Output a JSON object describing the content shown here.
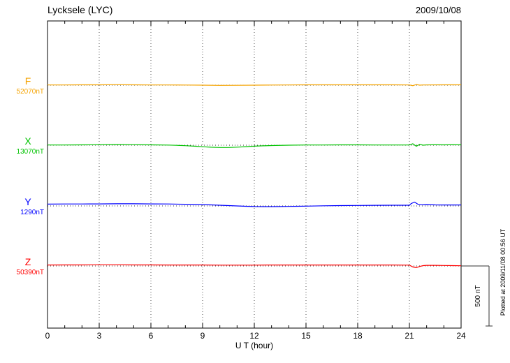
{
  "header": {
    "station_title": "Lycksele (LYC)",
    "date": "2009/10/08"
  },
  "axis": {
    "xlabel": "U T (hour)"
  },
  "scale_bar": {
    "label": "500 nT"
  },
  "footer_note": "Plotted at 2009/11/08 00:56 UT",
  "chart_data": {
    "type": "line",
    "title": "Lycksele (LYC) magnetogram 2009/10/08",
    "xlabel": "U T (hour)",
    "ylabel": "",
    "x_range": [
      0,
      24
    ],
    "x_major_ticks": [
      0,
      3,
      6,
      9,
      12,
      15,
      18,
      21,
      24
    ],
    "grid": "dotted-vertical-at-major-ticks-and-dotted-baselines",
    "legend_position": "left-of-traces",
    "scale_nT_per_division": 500,
    "series": [
      {
        "name": "F",
        "baseline_label": "52070nT",
        "baseline_nT": 52070,
        "color": "#f5a300",
        "x": [
          0,
          1,
          2,
          3,
          4,
          5,
          6,
          7,
          8,
          9,
          10,
          11,
          12,
          13,
          14,
          15,
          16,
          17,
          18,
          19,
          20,
          21,
          21.2,
          21.4,
          21.6,
          21.8,
          22,
          23,
          24
        ],
        "offsets_nT": [
          2,
          2,
          3,
          3,
          4,
          3,
          2,
          2,
          1,
          0,
          -2,
          -1,
          0,
          1,
          2,
          3,
          3,
          3,
          3,
          3,
          3,
          2,
          -4,
          5,
          0,
          2,
          2,
          3,
          3
        ]
      },
      {
        "name": "X",
        "baseline_label": "13070nT",
        "baseline_nT": 13070,
        "color": "#00c300",
        "x": [
          0,
          1,
          2,
          3,
          4,
          5,
          6,
          7,
          7.5,
          8,
          8.5,
          9,
          9.5,
          10,
          10.5,
          11,
          11.5,
          12,
          12.5,
          13,
          14,
          15,
          16,
          17,
          18,
          19,
          20,
          21,
          21.2,
          21.4,
          21.6,
          21.8,
          22,
          22.5,
          23,
          23.5,
          24
        ],
        "offsets_nT": [
          2,
          2,
          3,
          4,
          5,
          4,
          3,
          1,
          -1,
          -4,
          -8,
          -13,
          -17,
          -19,
          -19,
          -16,
          -12,
          -8,
          -5,
          -3,
          0,
          2,
          2,
          3,
          3,
          2,
          2,
          2,
          12,
          -9,
          7,
          0,
          3,
          4,
          3,
          4,
          3
        ]
      },
      {
        "name": "Y",
        "baseline_label": "1290nT",
        "baseline_nT": 1290,
        "color": "#0000ff",
        "x": [
          0,
          1,
          2,
          3,
          4,
          5,
          6,
          7,
          8,
          9,
          9.5,
          10,
          10.5,
          11,
          11.5,
          12,
          12.5,
          13,
          13.5,
          14,
          14.5,
          15,
          16,
          17,
          18,
          19,
          20,
          21,
          21.1,
          21.3,
          21.5,
          21.7,
          22,
          22.5,
          23,
          23.5,
          24
        ],
        "offsets_nT": [
          15,
          16,
          16,
          17,
          18,
          18,
          17,
          16,
          14,
          11,
          9,
          6,
          3,
          0,
          -3,
          -5,
          -6,
          -6,
          -5,
          -4,
          -3,
          -2,
          1,
          3,
          4,
          5,
          6,
          6,
          20,
          32,
          14,
          10,
          11,
          9,
          8,
          8,
          8
        ]
      },
      {
        "name": "Z",
        "baseline_label": "50390nT",
        "baseline_nT": 50390,
        "color": "#ff0000",
        "x": [
          0,
          1,
          2,
          3,
          4,
          5,
          6,
          7,
          8,
          9,
          10,
          11,
          12,
          13,
          14,
          15,
          16,
          17,
          18,
          19,
          20,
          21,
          21.2,
          21.4,
          21.6,
          21.8,
          22,
          22.5,
          23,
          23.5,
          24
        ],
        "offsets_nT": [
          8,
          9,
          9,
          10,
          10,
          9,
          9,
          8,
          8,
          8,
          7,
          7,
          7,
          8,
          8,
          8,
          8,
          8,
          8,
          8,
          8,
          7,
          -8,
          -14,
          -4,
          3,
          5,
          5,
          4,
          3,
          2
        ]
      }
    ]
  }
}
